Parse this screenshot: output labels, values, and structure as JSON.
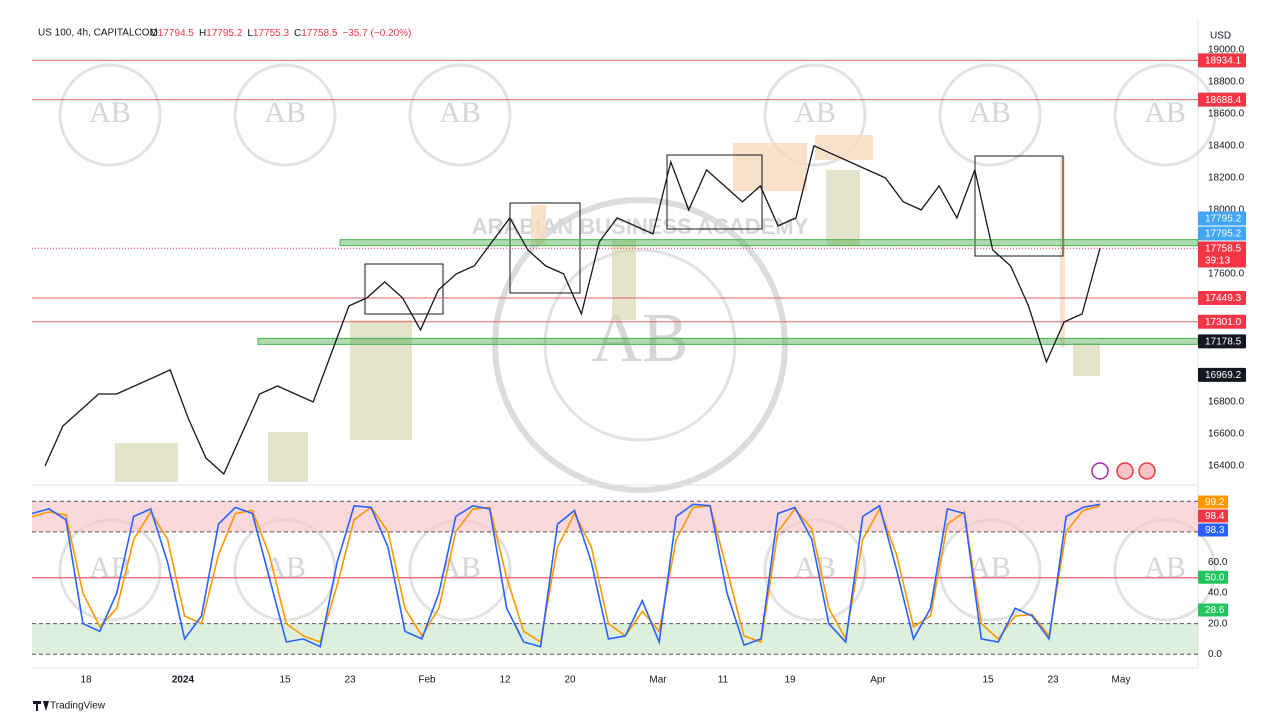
{
  "chart_data": {
    "type": "line",
    "symbol": "US 100, 4h, CAPITALCOM",
    "ohlc": [
      {
        "key": "O",
        "text": "17794.5"
      },
      {
        "key": "H",
        "text": "17795.2"
      },
      {
        "key": "L",
        "text": "17755.3"
      },
      {
        "key": "C",
        "text": "17758.5"
      }
    ],
    "change": "−35.7 (−0.20%)",
    "currency": "USD",
    "ylim": [
      16300,
      19030
    ],
    "yticks": [
      {
        "value": 19000,
        "label": "19000.0"
      },
      {
        "value": 18800,
        "label": "18800.0"
      },
      {
        "value": 18600,
        "label": "18600.0"
      },
      {
        "value": 18400,
        "label": "18400.0"
      },
      {
        "value": 18200,
        "label": "18200.0"
      },
      {
        "value": 18000,
        "label": "18000.0"
      },
      {
        "value": 17600,
        "label": "17600.0"
      },
      {
        "value": 16800,
        "label": "16800.0"
      },
      {
        "value": 16600,
        "label": "16600.0"
      },
      {
        "value": 16400,
        "label": "16400.0"
      }
    ],
    "x_labels": [
      "18",
      "2024",
      "15",
      "23",
      "Feb",
      "12",
      "20",
      "Mar",
      "11",
      "19",
      "Apr",
      "15",
      "23",
      "May"
    ],
    "color": "#131722",
    "values": [
      16400,
      16650,
      16750,
      16850,
      16850,
      16900,
      16950,
      17000,
      16700,
      16450,
      16350,
      16600,
      16850,
      16900,
      16850,
      16800,
      17100,
      17400,
      17450,
      17550,
      17450,
      17250,
      17500,
      17600,
      17650,
      17800,
      17950,
      17750,
      17650,
      17600,
      17350,
      17800,
      17950,
      17900,
      17850,
      18300,
      18000,
      18250,
      18150,
      18050,
      18150,
      17900,
      17950,
      18400,
      18350,
      18300,
      18250,
      18200,
      18050,
      18000,
      18150,
      17950,
      18250,
      17750,
      17650,
      17400,
      17050,
      17300,
      17350,
      17760
    ],
    "levels": [
      {
        "value": 18934.1,
        "color": "#e06666"
      },
      {
        "value": 18688.4,
        "color": "#e06666"
      },
      {
        "value": 17449.3,
        "color": "#e06666"
      },
      {
        "value": 17301.0,
        "color": "#e06666"
      }
    ],
    "bands": [
      {
        "value": 17795.2,
        "color": "#4caf50"
      },
      {
        "value": 17178.5,
        "color": "#4caf50"
      }
    ],
    "tags": [
      {
        "value": 18934.1,
        "label": "18934.1",
        "color": "#f23645"
      },
      {
        "value": 18688.4,
        "label": "18688.4",
        "color": "#f23645"
      },
      {
        "value": 17795.2,
        "label": "17795.2",
        "color": "#42a5f5"
      },
      {
        "value": 17795.2,
        "label": "17795.2",
        "color": "#42a5f5"
      },
      {
        "value": 17758.5,
        "label": "17758.5",
        "color": "#f23645"
      },
      {
        "value": 17449.3,
        "label": "17449.3",
        "color": "#f23645"
      },
      {
        "value": 17301.0,
        "label": "17301.0",
        "color": "#f23645"
      },
      {
        "value": 17178.5,
        "label": "17178.5",
        "color": "#131722"
      },
      {
        "value": 16969.2,
        "label": "16969.2",
        "color": "#131722"
      }
    ],
    "countdown": "39:13",
    "oscillator": {
      "type": "line",
      "ylim": [
        -9,
        108
      ],
      "yticks": [
        {
          "value": 60,
          "label": "60.0"
        },
        {
          "value": 40,
          "label": "40.0"
        },
        {
          "value": 20,
          "label": "20.0"
        },
        {
          "value": 0,
          "label": "0.0"
        }
      ],
      "dashed_levels": [
        100,
        80,
        20,
        0
      ],
      "level": {
        "value": 50,
        "color": "#f23645"
      },
      "zones": [
        {
          "from": 80,
          "to": 100,
          "color": "#f8c8cc"
        },
        {
          "from": 0,
          "to": 20,
          "color": "#cfe8cf"
        }
      ],
      "series": [
        {
          "color": "#ff9800",
          "values": [
            90,
            93,
            91,
            40,
            18,
            30,
            75,
            93,
            75,
            25,
            20,
            65,
            92,
            94,
            65,
            20,
            12,
            8,
            45,
            88,
            96,
            80,
            30,
            12,
            30,
            80,
            95,
            96,
            50,
            15,
            8,
            70,
            92,
            70,
            20,
            12,
            28,
            15,
            75,
            96,
            97,
            55,
            12,
            8,
            80,
            95,
            82,
            30,
            10,
            75,
            95,
            65,
            18,
            25,
            85,
            93,
            20,
            10,
            25,
            26,
            12,
            80,
            94,
            97
          ]
        },
        {
          "color": "#2962ff",
          "values": [
            92,
            95,
            88,
            20,
            15,
            40,
            90,
            95,
            60,
            10,
            25,
            85,
            96,
            92,
            50,
            8,
            10,
            5,
            60,
            97,
            96,
            70,
            15,
            10,
            40,
            90,
            97,
            95,
            30,
            8,
            5,
            85,
            94,
            60,
            10,
            12,
            35,
            8,
            90,
            98,
            97,
            40,
            6,
            10,
            92,
            96,
            75,
            20,
            8,
            90,
            97,
            55,
            10,
            30,
            95,
            92,
            10,
            8,
            30,
            25,
            10,
            90,
            96,
            98
          ]
        }
      ],
      "tags": [
        {
          "value": 99.2,
          "label": "99.2",
          "color": "#ff9800"
        },
        {
          "value": 98.4,
          "label": "98.4",
          "color": "#f23645"
        },
        {
          "value": 98.3,
          "label": "98.3",
          "color": "#2962ff"
        },
        {
          "value": 50.0,
          "label": "50.0",
          "color": "#22c55e"
        },
        {
          "value": 28.6,
          "label": "28.6",
          "color": "#22c55e"
        }
      ]
    },
    "watermark": {
      "initials": "AB",
      "name": "ARABIAN BUSINESS ACADEMY"
    },
    "footer": "TradingView"
  }
}
